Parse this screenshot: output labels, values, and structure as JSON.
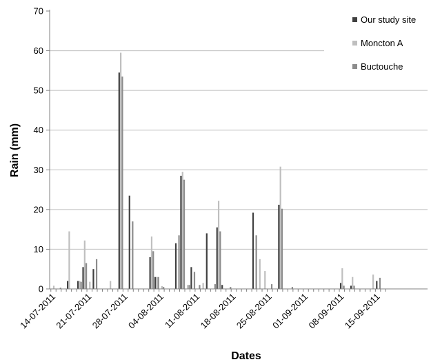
{
  "chart_data": {
    "type": "bar",
    "title": "",
    "xlabel": "Dates",
    "ylabel": "Rain (mm)",
    "ylim": [
      0,
      70
    ],
    "yticks": [
      0,
      10,
      20,
      30,
      40,
      50,
      60,
      70
    ],
    "grid": true,
    "legend_position": "top-right",
    "x_start": "14-07-2011",
    "x_tick_labels": [
      "14-07-2011",
      "21-07-2011",
      "28-07-2011",
      "04-08-2011",
      "11-08-2011",
      "18-08-2011",
      "25-08-2011",
      "01-09-2011",
      "08-09-2011",
      "15-09-2011"
    ],
    "categories": [
      "14-07-2011",
      "15-07-2011",
      "16-07-2011",
      "17-07-2011",
      "18-07-2011",
      "19-07-2011",
      "20-07-2011",
      "21-07-2011",
      "22-07-2011",
      "23-07-2011",
      "24-07-2011",
      "25-07-2011",
      "26-07-2011",
      "27-07-2011",
      "28-07-2011",
      "29-07-2011",
      "30-07-2011",
      "31-07-2011",
      "01-08-2011",
      "02-08-2011",
      "03-08-2011",
      "04-08-2011",
      "05-08-2011",
      "06-08-2011",
      "07-08-2011",
      "08-08-2011",
      "09-08-2011",
      "10-08-2011",
      "11-08-2011",
      "12-08-2011",
      "13-08-2011",
      "14-08-2011",
      "15-08-2011",
      "16-08-2011",
      "17-08-2011",
      "18-08-2011",
      "19-08-2011",
      "20-08-2011",
      "21-08-2011",
      "22-08-2011",
      "23-08-2011",
      "24-08-2011",
      "25-08-2011",
      "26-08-2011",
      "27-08-2011",
      "28-08-2011",
      "29-08-2011",
      "30-08-2011",
      "31-08-2011",
      "01-09-2011",
      "02-09-2011",
      "03-09-2011",
      "04-09-2011",
      "05-09-2011",
      "06-09-2011",
      "07-09-2011",
      "08-09-2011",
      "09-09-2011",
      "10-09-2011",
      "11-09-2011",
      "12-09-2011",
      "13-09-2011",
      "14-09-2011",
      "15-09-2011",
      "16-09-2011"
    ],
    "series": [
      {
        "name": "Our study site",
        "color": "#404040",
        "values": [
          0,
          0,
          0,
          2,
          0,
          2,
          5.5,
          0,
          5,
          0,
          0,
          0,
          0,
          54.5,
          0,
          23.5,
          0,
          0,
          0,
          8,
          3,
          0,
          0,
          0,
          11.5,
          28.5,
          0,
          5.5,
          0,
          0,
          14,
          0,
          15.5,
          1,
          0,
          0,
          0,
          0,
          0,
          19.2,
          0,
          0,
          0,
          0,
          21.2,
          0,
          0,
          0,
          0,
          0,
          0,
          0,
          0,
          0,
          0,
          0,
          1.5,
          0,
          0.8,
          0,
          0,
          0,
          0,
          2,
          0
        ]
      },
      {
        "name": "Moncton A",
        "color": "#bfbfbf",
        "values": [
          0.8,
          0,
          0,
          14.5,
          0,
          2,
          12.2,
          1.8,
          0,
          0,
          0,
          2,
          0,
          59.5,
          0,
          0,
          0,
          0,
          0,
          13.2,
          3,
          0.7,
          0,
          0,
          0,
          29.5,
          1,
          0,
          0,
          1.5,
          0,
          0,
          22.2,
          0,
          0,
          0,
          0,
          0,
          0,
          0,
          7.5,
          4.5,
          0,
          0,
          30.8,
          0,
          0,
          0,
          0,
          0,
          0,
          0,
          0,
          0,
          0,
          0,
          5.2,
          0,
          3,
          0,
          0,
          0,
          3.6,
          0,
          0
        ]
      },
      {
        "name": "Buctouche",
        "color": "#8c8c8c",
        "values": [
          0,
          0.3,
          0,
          0,
          0,
          1.8,
          6.5,
          0,
          7.5,
          0,
          0,
          0,
          0,
          53.5,
          0,
          17,
          0,
          0,
          0,
          9.5,
          3,
          0.5,
          0,
          0,
          13.5,
          27.5,
          1,
          4.3,
          1,
          0,
          0,
          1.2,
          14.5,
          0,
          0.5,
          0,
          0,
          0,
          0,
          13.5,
          0,
          0,
          1.2,
          0,
          20.2,
          0,
          0.5,
          0,
          0,
          0,
          0,
          0,
          0,
          0,
          0,
          0,
          0.8,
          0,
          0.8,
          0,
          0,
          0,
          0,
          2.8,
          0
        ]
      }
    ]
  }
}
